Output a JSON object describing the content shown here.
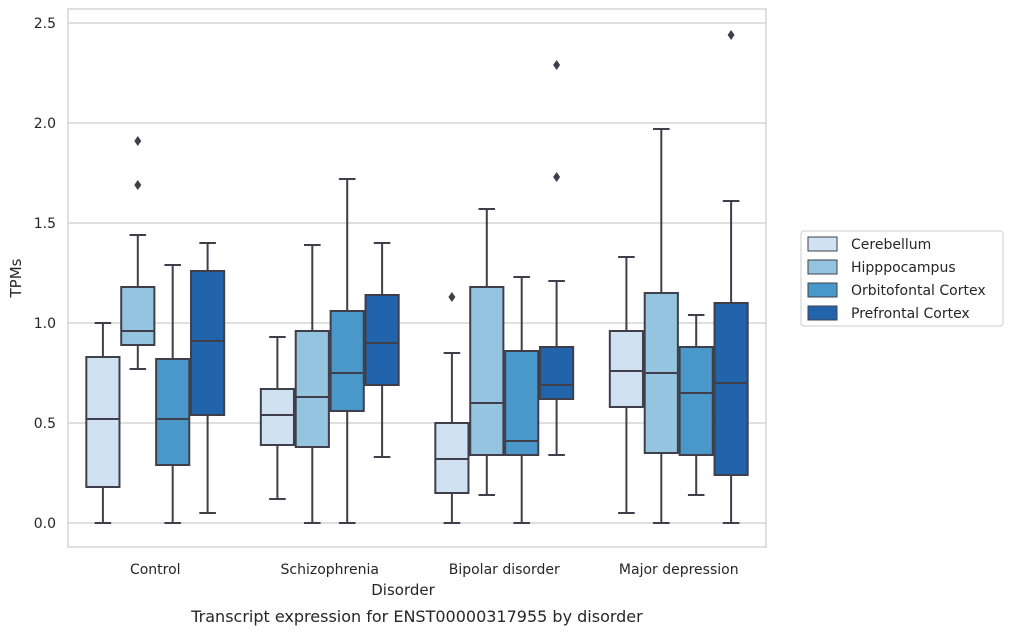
{
  "chart_data": {
    "type": "box",
    "caption": "Transcript expression for ENST00000317955 by disorder",
    "xlabel": "Disorder",
    "ylabel": "TPMs",
    "ylim": [
      -0.12,
      2.57
    ],
    "yticks": [
      0.0,
      0.5,
      1.0,
      1.5,
      2.0,
      2.5
    ],
    "ytick_labels": [
      "0.0",
      "0.5",
      "1.0",
      "1.5",
      "2.0",
      "2.5"
    ],
    "grid": true,
    "legend_position": "right",
    "categories": [
      "Control",
      "Schizophrenia",
      "Bipolar disorder",
      "Major depression"
    ],
    "series": [
      {
        "name": "Cerebellum",
        "color": "#d0e1f2",
        "boxes": [
          {
            "whisker_low": 0.0,
            "q1": 0.18,
            "median": 0.52,
            "q3": 0.83,
            "whisker_high": 1.0,
            "outliers": []
          },
          {
            "whisker_low": 0.12,
            "q1": 0.39,
            "median": 0.54,
            "q3": 0.67,
            "whisker_high": 0.93,
            "outliers": []
          },
          {
            "whisker_low": 0.0,
            "q1": 0.15,
            "median": 0.32,
            "q3": 0.5,
            "whisker_high": 0.85,
            "outliers": [
              1.13
            ]
          },
          {
            "whisker_low": 0.05,
            "q1": 0.58,
            "median": 0.76,
            "q3": 0.96,
            "whisker_high": 1.33,
            "outliers": []
          }
        ]
      },
      {
        "name": "Hipppocampus",
        "color": "#94c4df",
        "boxes": [
          {
            "whisker_low": 0.77,
            "q1": 0.89,
            "median": 0.96,
            "q3": 1.18,
            "whisker_high": 1.44,
            "outliers": [
              1.69,
              1.91
            ]
          },
          {
            "whisker_low": 0.0,
            "q1": 0.38,
            "median": 0.63,
            "q3": 0.96,
            "whisker_high": 1.39,
            "outliers": []
          },
          {
            "whisker_low": 0.14,
            "q1": 0.34,
            "median": 0.6,
            "q3": 1.18,
            "whisker_high": 1.57,
            "outliers": []
          },
          {
            "whisker_low": 0.0,
            "q1": 0.35,
            "median": 0.75,
            "q3": 1.15,
            "whisker_high": 1.97,
            "outliers": []
          }
        ]
      },
      {
        "name": "Orbitofontal Cortex",
        "color": "#4a98c9",
        "boxes": [
          {
            "whisker_low": 0.0,
            "q1": 0.29,
            "median": 0.52,
            "q3": 0.82,
            "whisker_high": 1.29,
            "outliers": []
          },
          {
            "whisker_low": 0.0,
            "q1": 0.56,
            "median": 0.75,
            "q3": 1.06,
            "whisker_high": 1.72,
            "outliers": []
          },
          {
            "whisker_low": 0.0,
            "q1": 0.34,
            "median": 0.41,
            "q3": 0.86,
            "whisker_high": 1.23,
            "outliers": []
          },
          {
            "whisker_low": 0.14,
            "q1": 0.34,
            "median": 0.65,
            "q3": 0.88,
            "whisker_high": 1.04,
            "outliers": []
          }
        ]
      },
      {
        "name": "Prefrontal Cortex",
        "color": "#2164ab",
        "boxes": [
          {
            "whisker_low": 0.05,
            "q1": 0.54,
            "median": 0.91,
            "q3": 1.26,
            "whisker_high": 1.4,
            "outliers": []
          },
          {
            "whisker_low": 0.33,
            "q1": 0.69,
            "median": 0.9,
            "q3": 1.14,
            "whisker_high": 1.4,
            "outliers": []
          },
          {
            "whisker_low": 0.34,
            "q1": 0.62,
            "median": 0.69,
            "q3": 0.88,
            "whisker_high": 1.21,
            "outliers": [
              1.73,
              2.29
            ]
          },
          {
            "whisker_low": 0.0,
            "q1": 0.24,
            "median": 0.7,
            "q3": 1.1,
            "whisker_high": 1.61,
            "outliers": [
              2.44
            ]
          }
        ]
      }
    ]
  }
}
